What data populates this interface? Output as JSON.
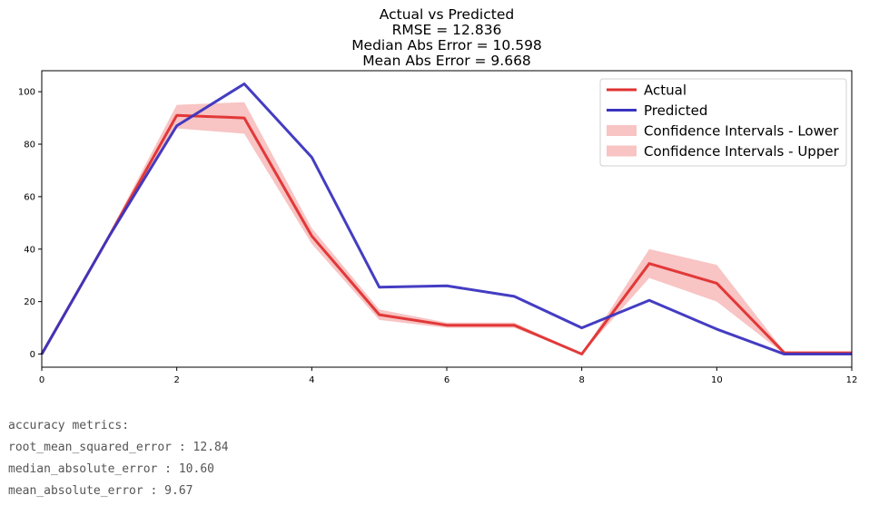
{
  "chart_data": {
    "type": "line",
    "title": [
      "Actual vs Predicted",
      "RMSE = 12.836",
      "Median Abs Error = 10.598",
      "Mean Abs Error = 9.668"
    ],
    "xlabel": "",
    "ylabel": "",
    "xlim": [
      0,
      12
    ],
    "ylim": [
      -5,
      108
    ],
    "x_ticks": [
      0,
      2,
      4,
      6,
      8,
      10,
      12
    ],
    "y_ticks": [
      0,
      20,
      40,
      60,
      80,
      100
    ],
    "grid": false,
    "legend_position": "upper-right",
    "x": [
      0,
      1,
      2,
      3,
      4,
      5,
      6,
      7,
      8,
      9,
      10,
      11,
      12
    ],
    "series": [
      {
        "name": "Actual",
        "color": "#e03030",
        "values": [
          0,
          45,
          91,
          90,
          45,
          15,
          11,
          11,
          0,
          34.5,
          27,
          0.5,
          0.5
        ]
      },
      {
        "name": "Predicted",
        "color": "#3a33bf",
        "values": [
          0,
          45,
          87,
          103,
          75,
          25.5,
          26,
          22,
          10,
          20.5,
          9.5,
          0,
          0
        ]
      }
    ],
    "bands": [
      {
        "name": "Confidence Intervals - Lower",
        "color": "#f8c4c4",
        "lower": [
          0,
          44,
          86,
          84,
          42,
          13,
          10,
          10,
          0,
          29,
          20,
          0,
          0
        ],
        "upper": [
          0,
          45,
          91,
          90,
          45,
          15,
          11,
          11,
          0,
          34.5,
          27,
          0.5,
          0.5
        ]
      },
      {
        "name": "Confidence Intervals - Upper",
        "color": "#f8c4c4",
        "lower": [
          0,
          45,
          91,
          90,
          45,
          15,
          11,
          11,
          0,
          34.5,
          27,
          0.5,
          0.5
        ],
        "upper": [
          0,
          46,
          95,
          96,
          48,
          17,
          12,
          12,
          0,
          40,
          34,
          1,
          0.5
        ]
      }
    ]
  },
  "metrics": {
    "header": "accuracy metrics:",
    "lines": [
      "root_mean_squared_error : 12.84",
      "median_absolute_error : 10.60",
      "mean_absolute_error : 9.67"
    ]
  }
}
